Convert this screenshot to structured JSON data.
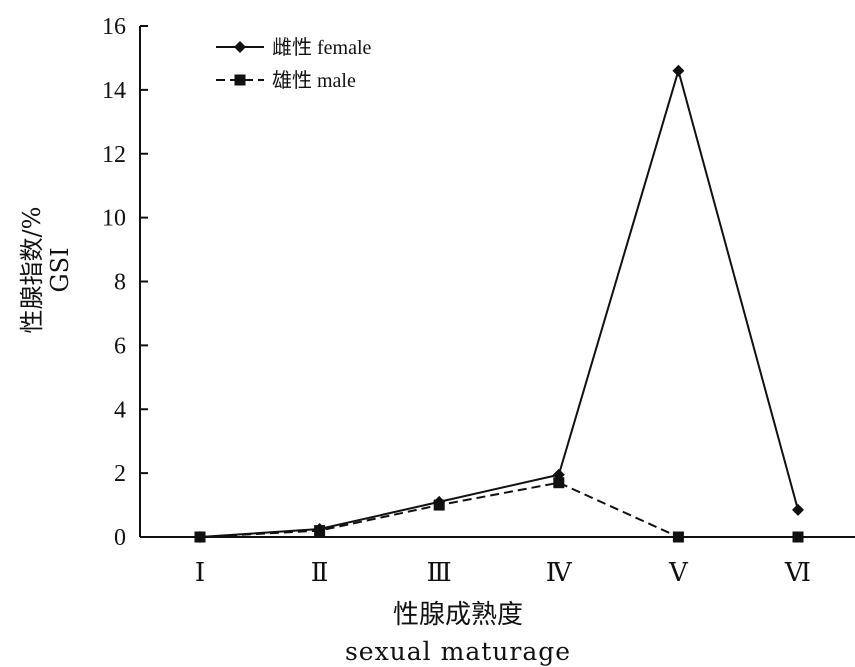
{
  "chart_data": {
    "type": "line",
    "categories": [
      "Ⅰ",
      "Ⅱ",
      "Ⅲ",
      "Ⅳ",
      "Ⅴ",
      "Ⅵ"
    ],
    "series": [
      {
        "name": "雌性 female",
        "marker": "diamond",
        "line": "solid",
        "values": [
          0.0,
          0.25,
          1.1,
          1.95,
          14.6,
          0.85
        ]
      },
      {
        "name": "雄性 male",
        "marker": "square",
        "line": "dashed",
        "values": [
          0.0,
          0.2,
          1.0,
          1.7,
          0.0,
          0.0
        ]
      }
    ],
    "ylabel_cn": "性腺指数/%",
    "ylabel_en": "GSI",
    "xlabel_cn": "性腺成熟度",
    "xlabel_en": "sexual maturage",
    "ylim": [
      0,
      16
    ],
    "yticks": [
      0,
      2,
      4,
      6,
      8,
      10,
      12,
      14,
      16
    ],
    "grid": false,
    "legend_position": "top-left",
    "color": "#111111"
  }
}
